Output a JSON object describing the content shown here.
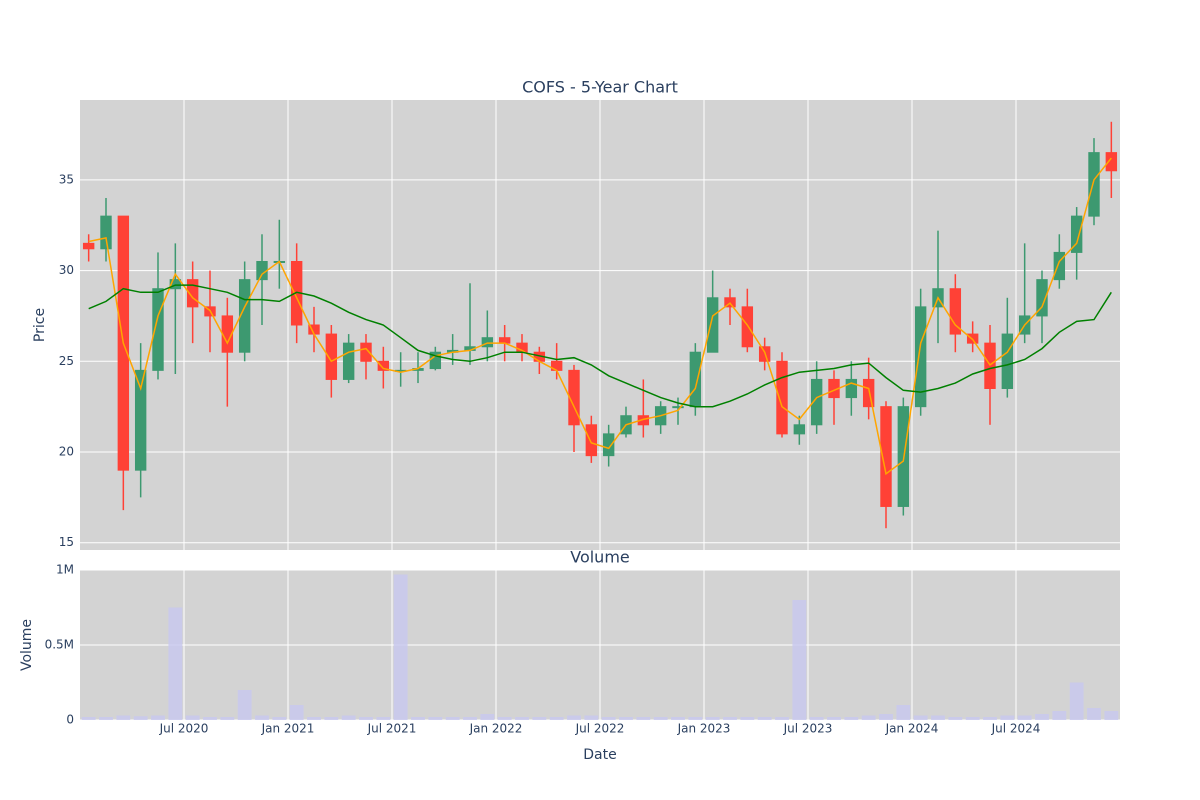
{
  "chart_data": [
    {
      "type": "candlestick",
      "title": "COFS - 5-Year Chart",
      "y_label": "Price",
      "x": [
        "2020-01",
        "2020-02",
        "2020-03",
        "2020-04",
        "2020-05",
        "2020-06",
        "2020-07",
        "2020-08",
        "2020-09",
        "2020-10",
        "2020-11",
        "2020-12",
        "2021-01",
        "2021-02",
        "2021-03",
        "2021-04",
        "2021-05",
        "2021-06",
        "2021-07",
        "2021-08",
        "2021-09",
        "2021-10",
        "2021-11",
        "2021-12",
        "2022-01",
        "2022-02",
        "2022-03",
        "2022-04",
        "2022-05",
        "2022-06",
        "2022-07",
        "2022-08",
        "2022-09",
        "2022-10",
        "2022-11",
        "2022-12",
        "2023-01",
        "2023-02",
        "2023-03",
        "2023-04",
        "2023-05",
        "2023-06",
        "2023-07",
        "2023-08",
        "2023-09",
        "2023-10",
        "2023-11",
        "2023-12",
        "2024-01",
        "2024-02",
        "2024-03",
        "2024-04",
        "2024-05",
        "2024-06",
        "2024-07",
        "2024-08",
        "2024-09",
        "2024-10",
        "2024-11",
        "2024-12"
      ],
      "open": [
        31.5,
        31.2,
        33,
        19,
        24.5,
        29,
        29.5,
        28,
        27.5,
        25.5,
        29.5,
        30.5,
        30.5,
        27,
        26.5,
        24,
        26,
        25,
        24.5,
        24.5,
        24.6,
        25.5,
        25.6,
        25.8,
        26.3,
        26,
        25.5,
        25,
        24.5,
        21.5,
        19.8,
        21,
        22,
        21.5,
        22.5,
        22.5,
        25.5,
        28.5,
        28,
        25.8,
        25,
        21,
        21.5,
        24,
        23,
        24,
        22.5,
        17,
        22.5,
        28,
        29,
        26.5,
        26,
        23.5,
        26.5,
        27.5,
        29.5,
        31,
        33,
        36.5
      ],
      "high": [
        32,
        34,
        33,
        26,
        31,
        31.5,
        30.5,
        30,
        28.5,
        30.5,
        32,
        32.8,
        31.5,
        28,
        27,
        26.5,
        26.5,
        25.8,
        25.5,
        25.5,
        25.8,
        26.5,
        29.3,
        27.8,
        27,
        26.5,
        25.8,
        26,
        24.8,
        22,
        21.5,
        22.5,
        24,
        22.8,
        23,
        26,
        30,
        29,
        29,
        26.3,
        25.5,
        22,
        25,
        24.5,
        25,
        25.2,
        22.8,
        23,
        29,
        32.2,
        29.8,
        27.2,
        27,
        28.5,
        31.5,
        30,
        32,
        33.5,
        37.3,
        38.2
      ],
      "low": [
        30.5,
        30.5,
        16.8,
        17.5,
        24,
        24.3,
        26,
        25.5,
        22.5,
        25,
        27,
        29,
        26,
        25.5,
        23,
        23.8,
        24,
        23.5,
        23.6,
        23.8,
        24.5,
        24.8,
        24.8,
        25,
        25,
        25,
        24.3,
        24,
        20,
        19.4,
        19.2,
        20.8,
        20.8,
        21,
        21.5,
        22,
        25.5,
        27,
        25.5,
        24.5,
        20.8,
        20.4,
        21,
        21.5,
        22,
        21.8,
        15.8,
        16.5,
        22,
        26,
        25.5,
        25.5,
        21.5,
        23,
        26,
        26,
        29,
        29.5,
        32.5,
        34
      ],
      "close": [
        31.2,
        33,
        19,
        24.5,
        29,
        29.5,
        28,
        27.5,
        25.5,
        29.5,
        30.5,
        30.5,
        27,
        26.5,
        24,
        26,
        25,
        24.5,
        24.5,
        24.6,
        25.5,
        25.6,
        25.8,
        26.3,
        26,
        25.5,
        25,
        24.5,
        21.5,
        19.8,
        21,
        22,
        21.5,
        22.5,
        22.5,
        25.5,
        28.5,
        28,
        25.8,
        25,
        21,
        21.5,
        24,
        23,
        24,
        22.5,
        17,
        22.5,
        28,
        29,
        26.5,
        26,
        23.5,
        26.5,
        27.5,
        29.5,
        31,
        33,
        36.5,
        35.5
      ],
      "increasing_color": "#3d9970",
      "decreasing_color": "#ff4136",
      "lines": [
        {
          "color": "orange",
          "values": [
            31.6,
            31.8,
            26,
            23.5,
            27.5,
            29.8,
            28.5,
            27.8,
            26,
            28,
            29.8,
            30.5,
            28.5,
            26.5,
            25,
            25.5,
            25.7,
            24.6,
            24.4,
            24.6,
            25.3,
            25.5,
            25.6,
            26,
            26,
            25.6,
            25,
            24.5,
            22.5,
            20.5,
            20.2,
            21.5,
            21.8,
            22,
            22.3,
            23.5,
            27.5,
            28.2,
            27,
            25.5,
            22.5,
            21.8,
            23,
            23.4,
            23.8,
            23.5,
            18.8,
            19.5,
            26,
            28.5,
            27,
            26.2,
            24.8,
            25.5,
            27,
            28,
            30.5,
            31.5,
            35,
            36.2
          ]
        },
        {
          "color": "green",
          "values": [
            27.9,
            28.3,
            29,
            28.8,
            28.8,
            29.2,
            29.2,
            29,
            28.8,
            28.4,
            28.4,
            28.3,
            28.8,
            28.6,
            28.2,
            27.7,
            27.3,
            27,
            26.3,
            25.6,
            25.3,
            25.1,
            25,
            25.2,
            25.5,
            25.5,
            25.3,
            25.1,
            25.2,
            24.8,
            24.2,
            23.8,
            23.4,
            23,
            22.7,
            22.5,
            22.5,
            22.8,
            23.2,
            23.7,
            24.1,
            24.4,
            24.5,
            24.6,
            24.8,
            24.9,
            24.1,
            23.4,
            23.3,
            23.5,
            23.8,
            24.3,
            24.6,
            24.8,
            25.1,
            25.7,
            26.6,
            27.2,
            27.3,
            28.8
          ]
        }
      ],
      "xlim": [
        "2020-01",
        "2025-01"
      ],
      "xticks": [
        "2020-07",
        "2021-01",
        "2021-07",
        "2022-01",
        "2022-07",
        "2023-01",
        "2023-07",
        "2024-01",
        "2024-07"
      ],
      "ylim": [
        14.6,
        39.4
      ],
      "yticks": [
        15,
        20,
        25,
        30,
        35
      ],
      "grid": true
    },
    {
      "type": "bar",
      "title": "Volume",
      "y_label": "Volume",
      "x_label": "Date",
      "x": [
        "2020-01",
        "2020-02",
        "2020-03",
        "2020-04",
        "2020-05",
        "2020-06",
        "2020-07",
        "2020-08",
        "2020-09",
        "2020-10",
        "2020-11",
        "2020-12",
        "2021-01",
        "2021-02",
        "2021-03",
        "2021-04",
        "2021-05",
        "2021-06",
        "2021-07",
        "2021-08",
        "2021-09",
        "2021-10",
        "2021-11",
        "2021-12",
        "2022-01",
        "2022-02",
        "2022-03",
        "2022-04",
        "2022-05",
        "2022-06",
        "2022-07",
        "2022-08",
        "2022-09",
        "2022-10",
        "2022-11",
        "2022-12",
        "2023-01",
        "2023-02",
        "2023-03",
        "2023-04",
        "2023-05",
        "2023-06",
        "2023-07",
        "2023-08",
        "2023-09",
        "2023-10",
        "2023-11",
        "2023-12",
        "2024-01",
        "2024-02",
        "2024-03",
        "2024-04",
        "2024-05",
        "2024-06",
        "2024-07",
        "2024-08",
        "2024-09",
        "2024-10",
        "2024-11",
        "2024-12"
      ],
      "values": [
        20000,
        20000,
        30000,
        25000,
        30000,
        750000,
        30000,
        20000,
        20000,
        200000,
        30000,
        20000,
        100000,
        20000,
        20000,
        30000,
        20000,
        20000,
        970000,
        20000,
        20000,
        20000,
        20000,
        40000,
        20000,
        20000,
        20000,
        20000,
        30000,
        30000,
        20000,
        20000,
        20000,
        20000,
        20000,
        20000,
        20000,
        20000,
        20000,
        20000,
        20000,
        800000,
        20000,
        20000,
        20000,
        30000,
        40000,
        100000,
        30000,
        30000,
        20000,
        20000,
        20000,
        30000,
        30000,
        40000,
        60000,
        250000,
        80000,
        60000
      ],
      "color": "#c8c8f0",
      "xlim": [
        "2020-01",
        "2025-01"
      ],
      "xticks": [
        {
          "value": "2020-07",
          "label": "Jul 2020"
        },
        {
          "value": "2021-01",
          "label": "Jan 2021"
        },
        {
          "value": "2021-07",
          "label": "Jul 2021"
        },
        {
          "value": "2022-01",
          "label": "Jan 2022"
        },
        {
          "value": "2022-07",
          "label": "Jul 2022"
        },
        {
          "value": "2023-01",
          "label": "Jan 2023"
        },
        {
          "value": "2023-07",
          "label": "Jul 2023"
        },
        {
          "value": "2024-01",
          "label": "Jan 2024"
        },
        {
          "value": "2024-07",
          "label": "Jul 2024"
        }
      ],
      "ylim": [
        0,
        1000000
      ],
      "yticks": [
        0,
        {
          "value": 500000,
          "label": "0.5M"
        },
        {
          "value": 1000000,
          "label": "1M"
        }
      ],
      "grid": true
    }
  ]
}
